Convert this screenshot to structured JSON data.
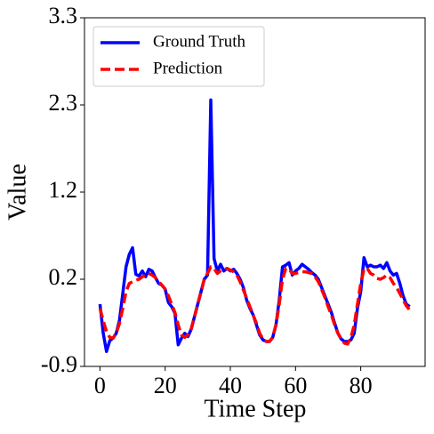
{
  "chart_data": {
    "type": "line",
    "x_label": "Time Step",
    "y_label": "Value",
    "x": [
      0,
      1,
      2,
      3,
      4,
      5,
      6,
      7,
      8,
      9,
      10,
      11,
      12,
      13,
      14,
      15,
      16,
      17,
      18,
      19,
      20,
      21,
      22,
      23,
      24,
      25,
      26,
      27,
      28,
      29,
      30,
      31,
      32,
      33,
      34,
      35,
      36,
      37,
      38,
      39,
      40,
      41,
      42,
      43,
      44,
      45,
      46,
      47,
      48,
      49,
      50,
      51,
      52,
      53,
      54,
      55,
      56,
      57,
      58,
      59,
      60,
      61,
      62,
      63,
      64,
      65,
      66,
      67,
      68,
      69,
      70,
      71,
      72,
      73,
      74,
      75,
      76,
      77,
      78,
      79,
      80,
      81,
      82,
      83,
      84,
      85,
      86,
      87,
      88,
      89,
      90,
      91,
      92,
      93,
      94,
      95
    ],
    "series": [
      {
        "name": "Ground Truth",
        "color": "#0000ff",
        "dash": "solid",
        "values": [
          -0.15,
          -0.5,
          -0.72,
          -0.59,
          -0.56,
          -0.5,
          -0.34,
          -0.02,
          0.3,
          0.45,
          0.53,
          0.21,
          0.19,
          0.25,
          0.18,
          0.27,
          0.25,
          0.17,
          0.1,
          0.08,
          0.03,
          -0.13,
          -0.18,
          -0.26,
          -0.64,
          -0.56,
          -0.5,
          -0.54,
          -0.45,
          -0.3,
          -0.15,
          0.0,
          0.15,
          0.2,
          2.31,
          0.4,
          0.25,
          0.33,
          0.25,
          0.28,
          0.25,
          0.27,
          0.22,
          0.15,
          0.05,
          -0.1,
          -0.2,
          -0.28,
          -0.4,
          -0.52,
          -0.58,
          -0.6,
          -0.6,
          -0.55,
          -0.4,
          -0.1,
          0.3,
          0.32,
          0.35,
          0.2,
          0.25,
          0.28,
          0.33,
          0.3,
          0.27,
          0.23,
          0.2,
          0.15,
          0.05,
          -0.05,
          -0.15,
          -0.25,
          -0.38,
          -0.5,
          -0.57,
          -0.6,
          -0.6,
          -0.58,
          -0.5,
          -0.2,
          0.0,
          0.41,
          0.3,
          0.32,
          0.3,
          0.3,
          0.32,
          0.28,
          0.35,
          0.25,
          0.2,
          0.22,
          0.1,
          -0.05,
          -0.15,
          -0.18
        ]
      },
      {
        "name": "Prediction",
        "color": "#ff0000",
        "dash": "dashed",
        "values": [
          -0.2,
          -0.35,
          -0.48,
          -0.55,
          -0.56,
          -0.5,
          -0.38,
          -0.2,
          0.0,
          0.1,
          0.12,
          0.14,
          0.15,
          0.18,
          0.2,
          0.22,
          0.2,
          0.17,
          0.12,
          0.08,
          0.03,
          -0.05,
          -0.15,
          -0.25,
          -0.4,
          -0.52,
          -0.55,
          -0.52,
          -0.45,
          -0.3,
          -0.15,
          0.0,
          0.15,
          0.22,
          0.3,
          0.28,
          0.22,
          0.25,
          0.27,
          0.28,
          0.26,
          0.24,
          0.2,
          0.12,
          0.02,
          -0.08,
          -0.18,
          -0.28,
          -0.38,
          -0.5,
          -0.57,
          -0.6,
          -0.6,
          -0.55,
          -0.4,
          -0.15,
          0.15,
          0.28,
          0.27,
          0.22,
          0.22,
          0.23,
          0.24,
          0.24,
          0.23,
          0.22,
          0.18,
          0.12,
          0.03,
          -0.07,
          -0.18,
          -0.28,
          -0.4,
          -0.5,
          -0.57,
          -0.62,
          -0.63,
          -0.55,
          -0.4,
          -0.15,
          0.1,
          0.27,
          0.28,
          0.22,
          0.2,
          0.16,
          0.15,
          0.17,
          0.2,
          0.17,
          0.1,
          0.05,
          -0.02,
          -0.1,
          -0.17,
          -0.22
        ]
      }
    ],
    "xlim": [
      -4.75,
      99.75
    ],
    "xticks": [
      0,
      20,
      40,
      60,
      80
    ],
    "ylim": [
      -0.9,
      3.3
    ],
    "yticks": [
      {
        "value": -0.9,
        "label": "-0.9"
      },
      {
        "value": 0.15,
        "label": "0.2"
      },
      1.2,
      {
        "value": 2.25,
        "label": "2.3"
      },
      3.3
    ],
    "grid": false,
    "legend": "upper left"
  }
}
